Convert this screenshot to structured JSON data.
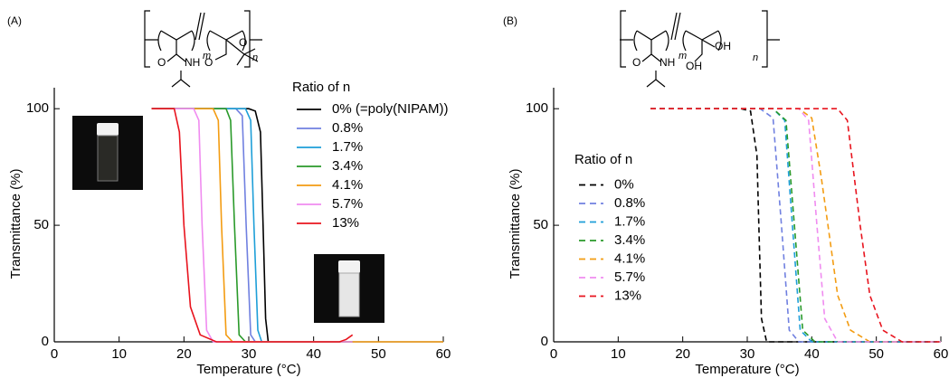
{
  "panel_labels": [
    "(A)",
    "(B)"
  ],
  "structures": [
    {
      "labels": [
        "m",
        "n",
        "O",
        "NH",
        "O",
        "O"
      ]
    },
    {
      "labels": [
        "m",
        "n",
        "O",
        "NH",
        "OH",
        "OH"
      ]
    }
  ],
  "chart_data": [
    {
      "type": "line",
      "xlabel": "Temperature (°C)",
      "ylabel": "Transmittance (%)",
      "legend_title": "Ratio of n",
      "legend_loc": "upper right",
      "linestyle": "solid",
      "xlim": [
        0,
        60
      ],
      "xticks": [
        0,
        10,
        20,
        30,
        40,
        50,
        60
      ],
      "ylim": [
        0,
        109
      ],
      "yticks": [
        0,
        50,
        100
      ],
      "series": [
        {
          "name": "0% (=poly(NIPAM))",
          "color": "#000000",
          "x": [
            15,
            30,
            31,
            31.8,
            32.2,
            32.6,
            33,
            46
          ],
          "values": [
            100,
            100,
            99,
            90,
            50,
            10,
            0,
            0
          ]
        },
        {
          "name": "0.8%",
          "color": "#7080e0",
          "x": [
            15,
            28,
            29,
            29.6,
            30.3,
            31,
            46
          ],
          "values": [
            100,
            100,
            97,
            50,
            3,
            0,
            0
          ]
        },
        {
          "name": "1.7%",
          "color": "#1e9fd8",
          "x": [
            15,
            29.5,
            30.3,
            30.8,
            31.4,
            32,
            46
          ],
          "values": [
            100,
            100,
            95,
            50,
            5,
            0,
            0
          ]
        },
        {
          "name": "3.4%",
          "color": "#2a9a2a",
          "x": [
            15,
            26.5,
            27.2,
            27.8,
            28.5,
            29.5,
            46
          ],
          "values": [
            100,
            100,
            95,
            50,
            3,
            0,
            0
          ]
        },
        {
          "name": "4.1%",
          "color": "#f39c12",
          "x": [
            15,
            24.5,
            25.3,
            25.8,
            26.5,
            27.5,
            60
          ],
          "values": [
            100,
            100,
            95,
            50,
            3,
            0,
            0
          ]
        },
        {
          "name": "5.7%",
          "color": "#f08cf0",
          "x": [
            15,
            21.5,
            22.3,
            22.8,
            23.5,
            24.5,
            46
          ],
          "values": [
            100,
            100,
            95,
            50,
            5,
            0,
            0
          ]
        },
        {
          "name": "13%",
          "color": "#e8141e",
          "x": [
            15,
            18.5,
            19.3,
            20,
            21,
            22.5,
            25,
            44,
            45,
            46
          ],
          "values": [
            100,
            100,
            90,
            50,
            15,
            3,
            0,
            0,
            1,
            3
          ]
        }
      ]
    },
    {
      "type": "line",
      "xlabel": "Temperature (°C)",
      "ylabel": "Transmittance (%)",
      "legend_title": "Ratio of n",
      "legend_loc": "center left",
      "linestyle": "dashed",
      "xlim": [
        0,
        60
      ],
      "xticks": [
        0,
        10,
        20,
        30,
        40,
        50,
        60
      ],
      "ylim": [
        0,
        109
      ],
      "yticks": [
        0,
        50,
        100
      ],
      "series": [
        {
          "name": "0%",
          "color": "#000000",
          "x": [
            15,
            29,
            30.5,
            31.5,
            31.8,
            32.2,
            33,
            60
          ],
          "values": [
            100,
            100,
            99,
            80,
            50,
            10,
            0,
            0
          ]
        },
        {
          "name": "0.8%",
          "color": "#7080e0",
          "x": [
            15,
            32,
            34,
            35.3,
            36.5,
            38,
            60
          ],
          "values": [
            100,
            100,
            96,
            50,
            5,
            0,
            0
          ]
        },
        {
          "name": "1.7%",
          "color": "#1e9fd8",
          "x": [
            15,
            34,
            35.8,
            37,
            38.2,
            40,
            60
          ],
          "values": [
            100,
            100,
            95,
            50,
            5,
            0,
            0
          ]
        },
        {
          "name": "3.4%",
          "color": "#2a9a2a",
          "x": [
            15,
            34,
            36,
            37.3,
            38.6,
            40.5,
            60
          ],
          "values": [
            100,
            100,
            95,
            50,
            5,
            0,
            0
          ]
        },
        {
          "name": "4.1%",
          "color": "#f39c12",
          "x": [
            15,
            38,
            40,
            41.5,
            42.5,
            44,
            46,
            49,
            60
          ],
          "values": [
            100,
            100,
            96,
            70,
            50,
            20,
            5,
            0,
            0
          ]
        },
        {
          "name": "5.7%",
          "color": "#f08cf0",
          "x": [
            15,
            38,
            39.5,
            40.8,
            42,
            44,
            60
          ],
          "values": [
            100,
            100,
            95,
            50,
            10,
            0,
            0
          ]
        },
        {
          "name": "13%",
          "color": "#e8141e",
          "x": [
            15,
            44,
            45.5,
            47.5,
            49,
            51,
            54,
            60
          ],
          "values": [
            100,
            100,
            95,
            50,
            20,
            5,
            0,
            0
          ]
        }
      ]
    }
  ]
}
